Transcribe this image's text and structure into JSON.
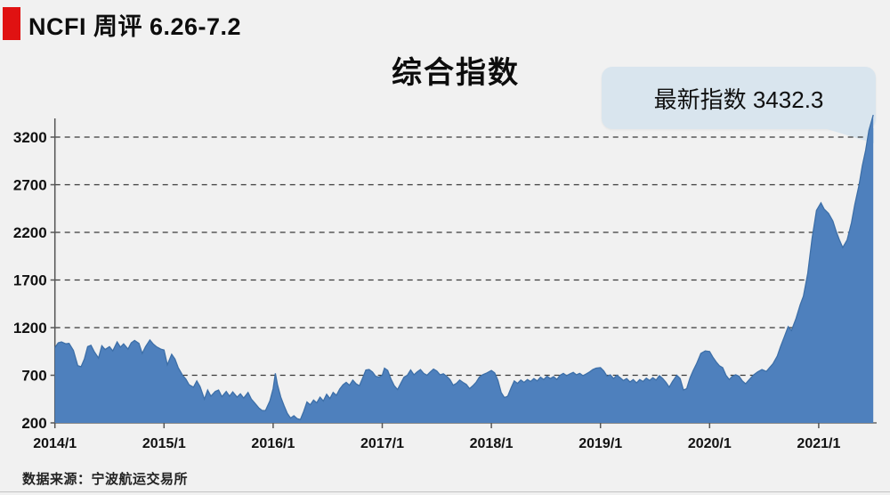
{
  "page": {
    "background": "#f1f1f1"
  },
  "header": {
    "badge_color": "#e01212",
    "title": "NCFI 周评 6.26-7.2"
  },
  "chart_title": "综合指数",
  "callout": {
    "label": "最新指数 3432.3",
    "bg": "#d9e5ee"
  },
  "source": "数据来源：宁波航运交易所",
  "chart_data": {
    "type": "area",
    "title": "综合指数",
    "series_name": "NCFI 综合指数 (周)",
    "latest_label": "最新指数 3432.3",
    "latest_value": 3432.3,
    "fill_color": "#4e80bd",
    "line_color": "#3d6fa8",
    "grid": "dashed horizontal",
    "legend": "none",
    "xlabel": "",
    "ylabel": "",
    "x_ticks": [
      "2014/1",
      "2015/1",
      "2016/1",
      "2017/1",
      "2018/1",
      "2019/1",
      "2020/1",
      "2021/1"
    ],
    "y_ticks": [
      200,
      700,
      1200,
      1700,
      2200,
      2700,
      3200
    ],
    "ylim": [
      200,
      3432.3
    ],
    "xlim_years": [
      2014.0,
      2021.5
    ],
    "points": [
      [
        2014.0,
        990
      ],
      [
        2014.03,
        1040
      ],
      [
        2014.06,
        1050
      ],
      [
        2014.1,
        1030
      ],
      [
        2014.13,
        1035
      ],
      [
        2014.17,
        960
      ],
      [
        2014.21,
        800
      ],
      [
        2014.24,
        790
      ],
      [
        2014.27,
        870
      ],
      [
        2014.3,
        1000
      ],
      [
        2014.33,
        1015
      ],
      [
        2014.36,
        950
      ],
      [
        2014.4,
        880
      ],
      [
        2014.43,
        1010
      ],
      [
        2014.46,
        970
      ],
      [
        2014.5,
        1000
      ],
      [
        2014.53,
        955
      ],
      [
        2014.57,
        1050
      ],
      [
        2014.6,
        995
      ],
      [
        2014.63,
        1030
      ],
      [
        2014.67,
        975
      ],
      [
        2014.7,
        1040
      ],
      [
        2014.73,
        1065
      ],
      [
        2014.77,
        1035
      ],
      [
        2014.8,
        930
      ],
      [
        2014.83,
        1000
      ],
      [
        2014.87,
        1070
      ],
      [
        2014.9,
        1030
      ],
      [
        2014.93,
        1000
      ],
      [
        2014.97,
        975
      ],
      [
        2015.0,
        965
      ],
      [
        2015.03,
        810
      ],
      [
        2015.07,
        920
      ],
      [
        2015.1,
        870
      ],
      [
        2015.13,
        780
      ],
      [
        2015.17,
        700
      ],
      [
        2015.2,
        660
      ],
      [
        2015.23,
        600
      ],
      [
        2015.27,
        575
      ],
      [
        2015.3,
        640
      ],
      [
        2015.33,
        580
      ],
      [
        2015.37,
        450
      ],
      [
        2015.4,
        545
      ],
      [
        2015.43,
        480
      ],
      [
        2015.47,
        530
      ],
      [
        2015.5,
        545
      ],
      [
        2015.53,
        475
      ],
      [
        2015.57,
        530
      ],
      [
        2015.6,
        480
      ],
      [
        2015.63,
        525
      ],
      [
        2015.67,
        470
      ],
      [
        2015.7,
        505
      ],
      [
        2015.73,
        460
      ],
      [
        2015.77,
        520
      ],
      [
        2015.8,
        450
      ],
      [
        2015.83,
        410
      ],
      [
        2015.87,
        355
      ],
      [
        2015.9,
        330
      ],
      [
        2015.93,
        330
      ],
      [
        2015.97,
        430
      ],
      [
        2016.0,
        560
      ],
      [
        2016.02,
        720
      ],
      [
        2016.04,
        600
      ],
      [
        2016.07,
        470
      ],
      [
        2016.1,
        380
      ],
      [
        2016.13,
        300
      ],
      [
        2016.16,
        250
      ],
      [
        2016.19,
        275
      ],
      [
        2016.22,
        245
      ],
      [
        2016.25,
        235
      ],
      [
        2016.28,
        320
      ],
      [
        2016.31,
        420
      ],
      [
        2016.34,
        390
      ],
      [
        2016.37,
        440
      ],
      [
        2016.4,
        410
      ],
      [
        2016.43,
        470
      ],
      [
        2016.46,
        430
      ],
      [
        2016.49,
        500
      ],
      [
        2016.52,
        455
      ],
      [
        2016.55,
        520
      ],
      [
        2016.58,
        490
      ],
      [
        2016.61,
        555
      ],
      [
        2016.64,
        600
      ],
      [
        2016.67,
        625
      ],
      [
        2016.7,
        595
      ],
      [
        2016.73,
        650
      ],
      [
        2016.76,
        610
      ],
      [
        2016.79,
        590
      ],
      [
        2016.82,
        670
      ],
      [
        2016.85,
        755
      ],
      [
        2016.88,
        760
      ],
      [
        2016.91,
        735
      ],
      [
        2016.94,
        690
      ],
      [
        2016.97,
        680
      ],
      [
        2017.0,
        700
      ],
      [
        2017.02,
        775
      ],
      [
        2017.05,
        750
      ],
      [
        2017.08,
        660
      ],
      [
        2017.11,
        590
      ],
      [
        2017.14,
        550
      ],
      [
        2017.17,
        615
      ],
      [
        2017.2,
        680
      ],
      [
        2017.23,
        700
      ],
      [
        2017.26,
        755
      ],
      [
        2017.29,
        705
      ],
      [
        2017.32,
        735
      ],
      [
        2017.35,
        760
      ],
      [
        2017.38,
        720
      ],
      [
        2017.41,
        700
      ],
      [
        2017.44,
        735
      ],
      [
        2017.47,
        765
      ],
      [
        2017.5,
        745
      ],
      [
        2017.53,
        705
      ],
      [
        2017.56,
        715
      ],
      [
        2017.59,
        690
      ],
      [
        2017.62,
        655
      ],
      [
        2017.65,
        595
      ],
      [
        2017.68,
        615
      ],
      [
        2017.71,
        650
      ],
      [
        2017.74,
        625
      ],
      [
        2017.77,
        605
      ],
      [
        2017.8,
        560
      ],
      [
        2017.83,
        590
      ],
      [
        2017.86,
        625
      ],
      [
        2017.89,
        680
      ],
      [
        2017.92,
        705
      ],
      [
        2017.96,
        725
      ],
      [
        2018.0,
        750
      ],
      [
        2018.03,
        725
      ],
      [
        2018.06,
        645
      ],
      [
        2018.09,
        520
      ],
      [
        2018.12,
        465
      ],
      [
        2018.15,
        480
      ],
      [
        2018.18,
        565
      ],
      [
        2018.21,
        640
      ],
      [
        2018.24,
        615
      ],
      [
        2018.27,
        650
      ],
      [
        2018.3,
        625
      ],
      [
        2018.33,
        655
      ],
      [
        2018.36,
        635
      ],
      [
        2018.39,
        665
      ],
      [
        2018.42,
        640
      ],
      [
        2018.45,
        680
      ],
      [
        2018.48,
        655
      ],
      [
        2018.51,
        690
      ],
      [
        2018.54,
        665
      ],
      [
        2018.57,
        685
      ],
      [
        2018.6,
        655
      ],
      [
        2018.63,
        700
      ],
      [
        2018.66,
        720
      ],
      [
        2018.69,
        695
      ],
      [
        2018.72,
        715
      ],
      [
        2018.75,
        730
      ],
      [
        2018.78,
        705
      ],
      [
        2018.81,
        720
      ],
      [
        2018.84,
        695
      ],
      [
        2018.87,
        715
      ],
      [
        2018.9,
        735
      ],
      [
        2018.93,
        760
      ],
      [
        2018.96,
        775
      ],
      [
        2019.0,
        780
      ],
      [
        2019.03,
        745
      ],
      [
        2019.06,
        690
      ],
      [
        2019.09,
        705
      ],
      [
        2019.12,
        665
      ],
      [
        2019.15,
        700
      ],
      [
        2019.18,
        675
      ],
      [
        2019.21,
        645
      ],
      [
        2019.24,
        665
      ],
      [
        2019.27,
        630
      ],
      [
        2019.3,
        655
      ],
      [
        2019.33,
        620
      ],
      [
        2019.36,
        655
      ],
      [
        2019.39,
        635
      ],
      [
        2019.42,
        670
      ],
      [
        2019.45,
        645
      ],
      [
        2019.48,
        675
      ],
      [
        2019.51,
        650
      ],
      [
        2019.54,
        695
      ],
      [
        2019.57,
        665
      ],
      [
        2019.6,
        625
      ],
      [
        2019.63,
        575
      ],
      [
        2019.66,
        635
      ],
      [
        2019.7,
        700
      ],
      [
        2019.73,
        665
      ],
      [
        2019.76,
        545
      ],
      [
        2019.79,
        560
      ],
      [
        2019.82,
        670
      ],
      [
        2019.85,
        750
      ],
      [
        2019.88,
        820
      ],
      [
        2019.92,
        930
      ],
      [
        2019.96,
        955
      ],
      [
        2020.0,
        950
      ],
      [
        2020.03,
        890
      ],
      [
        2020.06,
        840
      ],
      [
        2020.09,
        800
      ],
      [
        2020.12,
        780
      ],
      [
        2020.15,
        700
      ],
      [
        2020.18,
        655
      ],
      [
        2020.21,
        690
      ],
      [
        2020.24,
        705
      ],
      [
        2020.27,
        690
      ],
      [
        2020.3,
        640
      ],
      [
        2020.33,
        610
      ],
      [
        2020.36,
        650
      ],
      [
        2020.4,
        700
      ],
      [
        2020.44,
        735
      ],
      [
        2020.48,
        760
      ],
      [
        2020.52,
        740
      ],
      [
        2020.55,
        780
      ],
      [
        2020.58,
        820
      ],
      [
        2020.62,
        900
      ],
      [
        2020.65,
        1000
      ],
      [
        2020.68,
        1090
      ],
      [
        2020.72,
        1210
      ],
      [
        2020.75,
        1170
      ],
      [
        2020.79,
        1290
      ],
      [
        2020.83,
        1440
      ],
      [
        2020.86,
        1530
      ],
      [
        2020.9,
        1770
      ],
      [
        2020.94,
        2140
      ],
      [
        2020.98,
        2430
      ],
      [
        2021.02,
        2510
      ],
      [
        2021.05,
        2445
      ],
      [
        2021.09,
        2400
      ],
      [
        2021.13,
        2320
      ],
      [
        2021.16,
        2210
      ],
      [
        2021.19,
        2120
      ],
      [
        2021.22,
        2040
      ],
      [
        2021.26,
        2120
      ],
      [
        2021.3,
        2300
      ],
      [
        2021.33,
        2490
      ],
      [
        2021.37,
        2700
      ],
      [
        2021.4,
        2900
      ],
      [
        2021.43,
        3060
      ],
      [
        2021.46,
        3270
      ],
      [
        2021.5,
        3432.3
      ]
    ]
  }
}
